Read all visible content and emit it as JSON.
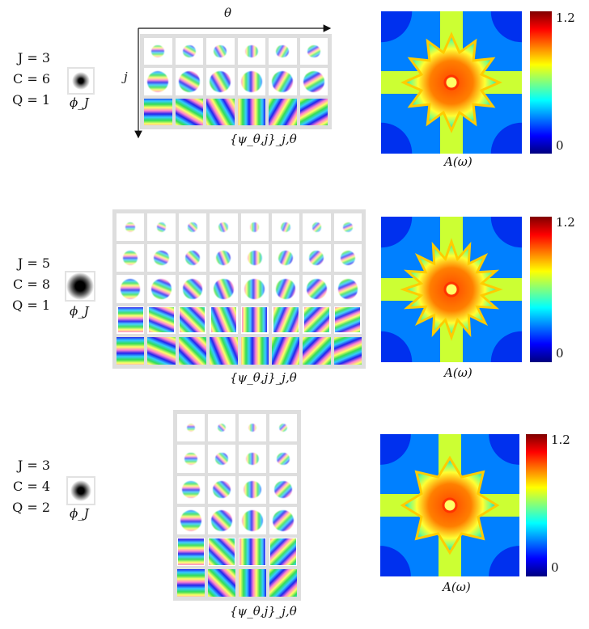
{
  "axis_labels": {
    "theta": "θ",
    "j": "j"
  },
  "panels": [
    {
      "params": {
        "J": "J = 3",
        "C": "C = 6",
        "Q": "Q = 1"
      },
      "phi_label": "ϕ_J",
      "filter_label": "{ψ_θ,j}_j,θ",
      "map_label": "A(ω)",
      "colorbar": {
        "max": "1.2",
        "min": "0"
      },
      "grid": {
        "rows": 3,
        "cols": 6
      }
    },
    {
      "params": {
        "J": "J = 5",
        "C": "C = 8",
        "Q": "Q = 1"
      },
      "phi_label": "ϕ_J",
      "filter_label": "{ψ_θ,j}_j,θ",
      "map_label": "A(ω)",
      "colorbar": {
        "max": "1.2",
        "min": "0"
      },
      "grid": {
        "rows": 5,
        "cols": 8
      }
    },
    {
      "params": {
        "J": "J = 3",
        "C": "C = 4",
        "Q": "Q = 2"
      },
      "phi_label": "ϕ_J",
      "filter_label": "{ψ_θ,j}_j,θ",
      "map_label": "A(ω)",
      "colorbar": {
        "max": "1.2",
        "min": "0"
      },
      "grid": {
        "rows": 6,
        "cols": 4
      }
    }
  ]
}
